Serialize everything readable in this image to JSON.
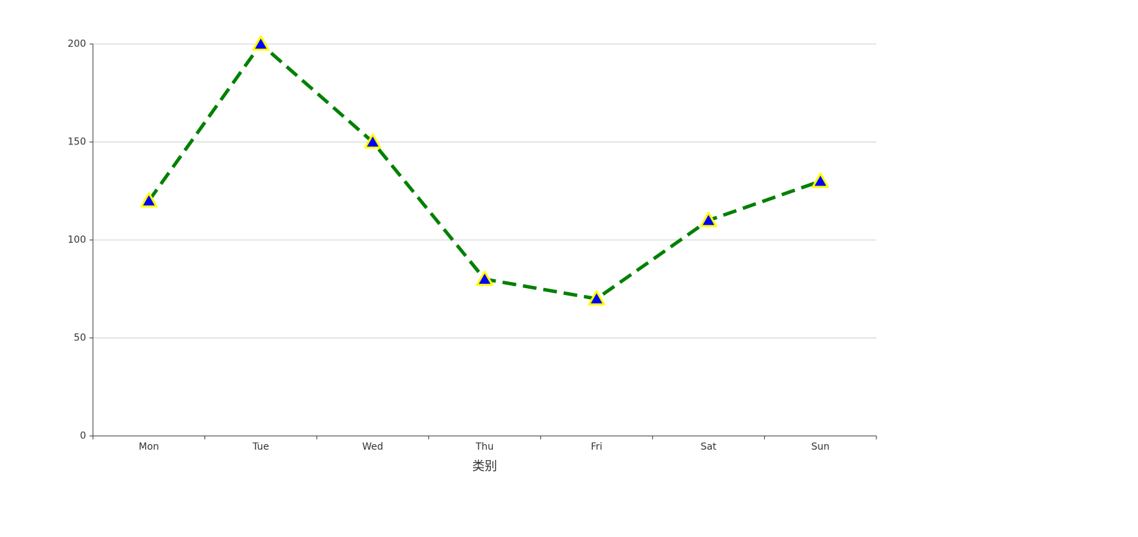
{
  "chart_data": {
    "type": "line",
    "xlabel": "类别",
    "categories": [
      "Mon",
      "Tue",
      "Wed",
      "Thu",
      "Fri",
      "Sat",
      "Sun"
    ],
    "values": [
      120,
      200,
      150,
      80,
      70,
      110,
      130
    ],
    "color": "#008000",
    "line_style": "dashed",
    "marker": "triangle",
    "marker_color": "#0000ff",
    "marker_edge_color": "#ffff00",
    "ylim": [
      0,
      200
    ],
    "yticks": [
      0,
      50,
      100,
      150,
      200
    ],
    "grid": true
  }
}
